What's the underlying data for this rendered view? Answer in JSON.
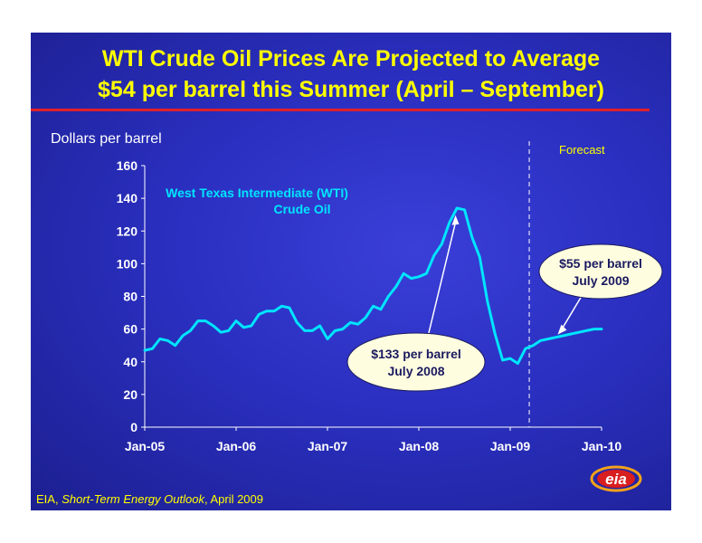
{
  "title_line1": "WTI Crude Oil Prices Are Projected to Average",
  "title_line2": "$54 per barrel this Summer (April – September)",
  "ylabel": "Dollars per barrel",
  "forecast_label": "Forecast",
  "source_prefix": "EIA, ",
  "source_italic": "Short-Term Energy Outlook",
  "source_suffix": ", April 2009",
  "series_label_line1": "West Texas Intermediate (WTI)",
  "series_label_line2": "Crude Oil",
  "annotation_2008_line1": "$133 per barrel",
  "annotation_2008_line2": "July 2008",
  "annotation_2009_line1": "$55 per barrel",
  "annotation_2009_line2": "July 2009",
  "logo_text": "eia",
  "colors": {
    "title": "#ffff00",
    "rule": "#e0202a",
    "line": "#00e5ff",
    "series_label": "#00e5ff",
    "axis": "#ffffff",
    "callout_fill": "#fffde0"
  },
  "chart_data": {
    "type": "line",
    "title": "WTI Crude Oil Prices Are Projected to Average $54 per barrel this Summer (April – September)",
    "ylabel": "Dollars per barrel",
    "xlabel": "",
    "ylim": [
      0,
      160
    ],
    "yticks": [
      0,
      20,
      40,
      60,
      80,
      100,
      120,
      140,
      160
    ],
    "xticks": [
      "Jan-05",
      "Jan-06",
      "Jan-07",
      "Jan-08",
      "Jan-09",
      "Jan-10"
    ],
    "x_start": "Jan-05",
    "x_end": "Jan-10",
    "forecast_start": "Apr-09",
    "grid": false,
    "series": [
      {
        "name": "West Texas Intermediate (WTI) Crude Oil",
        "values": [
          47,
          48,
          54,
          53,
          50,
          56,
          59,
          65,
          65,
          62,
          58,
          59,
          65,
          61,
          62,
          69,
          71,
          71,
          74,
          73,
          64,
          59,
          59,
          62,
          54,
          59,
          60,
          64,
          63,
          67,
          74,
          72,
          80,
          86,
          94,
          91,
          92,
          94,
          105,
          112,
          125,
          134,
          133,
          116,
          104,
          77,
          57,
          41,
          42,
          39,
          48,
          50,
          53,
          54,
          55,
          56,
          57,
          58,
          59,
          60,
          60
        ]
      }
    ],
    "annotations": [
      {
        "text": "$133 per barrel July 2008",
        "x": "Jul-08",
        "y": 133
      },
      {
        "text": "$55 per barrel July 2009",
        "x": "Jul-09",
        "y": 55
      }
    ]
  }
}
